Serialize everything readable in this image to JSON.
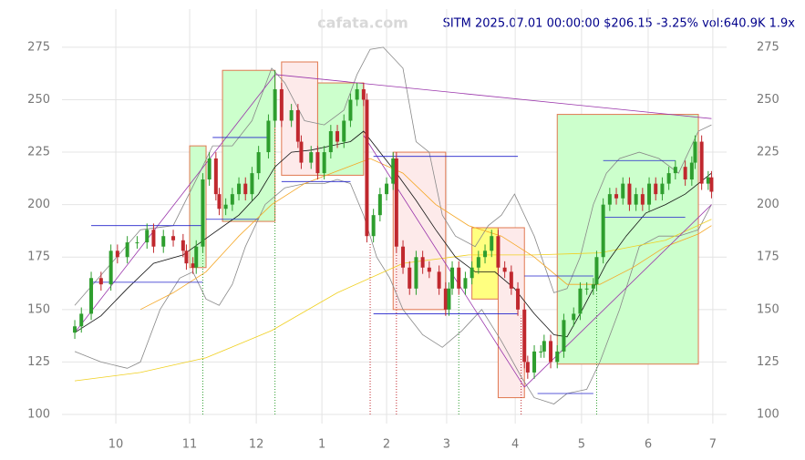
{
  "chart_data": {
    "type": "candlestick",
    "title": "SITM 2025.07.01 00:00:00 $206.15 -3.25% vol:640.9K 1.9x",
    "watermark": "cafata.com",
    "up_color": "#2e9e2e",
    "down_color": "#c0282e",
    "grid": true,
    "xlim": [
      -3.9,
      198.6
    ],
    "ylim": [
      100,
      284.5
    ],
    "yticks": [
      100,
      125,
      150,
      175,
      200,
      225,
      250,
      275
    ],
    "xticks": [
      {
        "value": 12.5,
        "label": "10"
      },
      {
        "value": 35,
        "label": "11"
      },
      {
        "value": 55.3,
        "label": "12"
      },
      {
        "value": 75.3,
        "label": "1"
      },
      {
        "value": 95,
        "label": "2"
      },
      {
        "value": 113.3,
        "label": "3"
      },
      {
        "value": 134.2,
        "label": "4"
      },
      {
        "value": 154.4,
        "label": "5"
      },
      {
        "value": 174.7,
        "label": "6"
      },
      {
        "value": 194.4,
        "label": "7"
      }
    ],
    "x": [
      0,
      2,
      5,
      8,
      11,
      13,
      16,
      19,
      22,
      24,
      27,
      30,
      33,
      34,
      36,
      37,
      39,
      41,
      43,
      44,
      46,
      48,
      50,
      52,
      54,
      56,
      59,
      61,
      63,
      66,
      68,
      69,
      72,
      74,
      76,
      78,
      80,
      82,
      84,
      86,
      88,
      89,
      91,
      93,
      95,
      97,
      98,
      100,
      102,
      104,
      106,
      108,
      111,
      113,
      114,
      115,
      117,
      119,
      121,
      123,
      125,
      127,
      129,
      131,
      133,
      135,
      137,
      138,
      140,
      142,
      143,
      145,
      147,
      149,
      152,
      154,
      156,
      158,
      159,
      161,
      163,
      165,
      167,
      169,
      171,
      173,
      175,
      177,
      179,
      181,
      183,
      186,
      188,
      189,
      191,
      193,
      194
    ],
    "open": [
      139,
      142,
      148,
      165,
      162,
      178,
      175,
      182,
      182,
      188,
      180,
      185,
      183,
      178,
      172,
      170,
      180,
      212,
      222,
      205,
      198,
      200,
      205,
      210,
      205,
      215,
      225,
      240,
      255,
      240,
      245,
      230,
      220,
      225,
      215,
      225,
      235,
      230,
      240,
      250,
      255,
      250,
      185,
      195,
      205,
      210,
      222,
      180,
      170,
      160,
      175,
      170,
      168,
      160,
      150,
      160,
      170,
      160,
      165,
      170,
      175,
      178,
      185,
      170,
      168,
      160,
      150,
      125,
      120,
      130,
      130,
      135,
      125,
      130,
      145,
      148,
      160,
      160,
      162,
      175,
      200,
      205,
      203,
      210,
      200,
      205,
      200,
      210,
      205,
      210,
      215,
      218,
      212,
      220,
      230,
      210,
      213
    ],
    "high": [
      145,
      151,
      168,
      168,
      181,
      181,
      185,
      185,
      191,
      191,
      188,
      188,
      186,
      181,
      175,
      183,
      215,
      225,
      225,
      208,
      203,
      208,
      213,
      213,
      218,
      228,
      243,
      264,
      258,
      248,
      248,
      233,
      228,
      228,
      228,
      238,
      238,
      243,
      253,
      258,
      258,
      253,
      198,
      208,
      213,
      225,
      225,
      183,
      173,
      178,
      178,
      173,
      171,
      163,
      163,
      173,
      173,
      168,
      173,
      178,
      181,
      188,
      188,
      173,
      171,
      163,
      153,
      128,
      133,
      133,
      138,
      138,
      133,
      148,
      151,
      163,
      163,
      165,
      178,
      203,
      208,
      208,
      213,
      213,
      208,
      208,
      213,
      213,
      213,
      218,
      221,
      221,
      223,
      233,
      233,
      216,
      216
    ],
    "low": [
      136,
      139,
      145,
      159,
      159,
      172,
      172,
      179,
      179,
      177,
      177,
      180,
      175,
      169,
      167,
      167,
      177,
      209,
      202,
      195,
      195,
      197,
      202,
      202,
      202,
      212,
      222,
      237,
      237,
      237,
      227,
      217,
      217,
      212,
      212,
      222,
      227,
      227,
      237,
      247,
      247,
      182,
      182,
      192,
      202,
      207,
      177,
      167,
      157,
      157,
      167,
      165,
      157,
      147,
      147,
      157,
      157,
      157,
      162,
      167,
      172,
      175,
      167,
      165,
      157,
      147,
      122,
      117,
      117,
      127,
      127,
      122,
      122,
      127,
      142,
      145,
      157,
      157,
      159,
      172,
      197,
      200,
      200,
      197,
      197,
      197,
      197,
      202,
      202,
      207,
      212,
      209,
      209,
      217,
      207,
      207,
      203
    ],
    "close": [
      142,
      148,
      165,
      162,
      178,
      175,
      182,
      182,
      188,
      180,
      185,
      183,
      178,
      172,
      170,
      180,
      212,
      222,
      205,
      198,
      200,
      205,
      210,
      205,
      215,
      225,
      240,
      255,
      240,
      245,
      230,
      220,
      225,
      215,
      225,
      235,
      230,
      240,
      250,
      255,
      250,
      185,
      195,
      205,
      210,
      222,
      180,
      170,
      160,
      175,
      170,
      168,
      160,
      150,
      160,
      170,
      160,
      165,
      170,
      175,
      178,
      185,
      170,
      168,
      160,
      150,
      125,
      120,
      130,
      130,
      135,
      125,
      130,
      145,
      148,
      160,
      160,
      162,
      175,
      200,
      205,
      203,
      210,
      200,
      205,
      200,
      210,
      205,
      210,
      215,
      218,
      212,
      220,
      230,
      210,
      213,
      206.15
    ],
    "zones": [
      {
        "color": "#ccffcc",
        "x": [
          35,
          40
        ],
        "y": [
          170,
          228
        ]
      },
      {
        "color": "#ccffcc",
        "x": [
          45,
          61
        ],
        "y": [
          192,
          264
        ]
      },
      {
        "color": "#fdeaea",
        "x": [
          63,
          74
        ],
        "y": [
          214,
          268
        ]
      },
      {
        "color": "#ccffcc",
        "x": [
          74,
          88
        ],
        "y": [
          214,
          258
        ]
      },
      {
        "color": "#fdeaea",
        "x": [
          97,
          113
        ],
        "y": [
          150,
          225
        ]
      },
      {
        "color": "#ffff80",
        "x": [
          121,
          129
        ],
        "y": [
          155,
          189
        ]
      },
      {
        "color": "#fdeaea",
        "x": [
          129,
          137
        ],
        "y": [
          108,
          189
        ]
      },
      {
        "color": "#ccffcc",
        "x": [
          147,
          190
        ],
        "y": [
          124,
          243
        ]
      }
    ],
    "lines": [
      {
        "color": "#888888",
        "x": [
          0,
          10,
          20,
          30,
          38,
          42,
          48,
          54,
          60,
          64,
          70,
          76,
          82,
          86,
          90,
          94,
          100,
          104,
          108,
          112,
          116,
          122,
          126,
          130,
          134,
          140,
          146,
          150,
          154,
          158,
          162,
          166,
          172,
          178,
          184,
          190,
          194
        ],
        "y": [
          152,
          170,
          188,
          190,
          215,
          228,
          228,
          240,
          265,
          258,
          240,
          238,
          245,
          262,
          274,
          275,
          265,
          230,
          225,
          195,
          185,
          180,
          190,
          195,
          205,
          185,
          158,
          160,
          175,
          200,
          215,
          222,
          225,
          222,
          215,
          235,
          238
        ]
      },
      {
        "color": "#888888",
        "x": [
          0,
          8,
          16,
          20,
          26,
          32,
          36,
          40,
          44,
          48,
          52,
          58,
          64,
          70,
          76,
          80,
          84,
          88,
          92,
          96,
          100,
          106,
          112,
          118,
          124,
          130,
          136,
          140,
          146,
          150,
          156,
          160,
          166,
          172,
          178,
          184,
          190,
          194
        ],
        "y": [
          130,
          125,
          122,
          125,
          150,
          165,
          168,
          155,
          152,
          162,
          180,
          200,
          208,
          210,
          210,
          212,
          210,
          195,
          175,
          165,
          150,
          138,
          132,
          140,
          150,
          135,
          118,
          108,
          105,
          110,
          112,
          125,
          150,
          180,
          185,
          185,
          188,
          200
        ]
      },
      {
        "color": "#f0d020",
        "x": [
          0,
          20,
          40,
          60,
          80,
          100,
          120,
          140,
          160,
          180,
          194
        ],
        "y": [
          116,
          120,
          127,
          140,
          158,
          172,
          176,
          176,
          177,
          183,
          193
        ]
      },
      {
        "color": "#f5a623",
        "x": [
          20,
          30,
          40,
          50,
          60,
          70,
          80,
          90,
          100,
          110,
          120,
          130,
          140,
          150,
          160,
          170,
          180,
          190,
          194
        ],
        "y": [
          150,
          158,
          168,
          185,
          200,
          210,
          216,
          222,
          215,
          200,
          190,
          185,
          175,
          162,
          162,
          170,
          180,
          186,
          190
        ]
      },
      {
        "color": "#111111",
        "x": [
          0,
          8,
          16,
          24,
          33,
          41,
          50,
          56,
          61,
          66,
          72,
          78,
          84,
          88,
          93,
          98,
          104,
          110,
          116,
          122,
          128,
          134,
          140,
          146,
          150,
          154,
          158,
          162,
          168,
          174,
          180,
          186,
          190,
          194
        ],
        "y": [
          139,
          147,
          160,
          172,
          176,
          185,
          195,
          205,
          218,
          225,
          226,
          228,
          230,
          235,
          225,
          215,
          202,
          188,
          175,
          168,
          168,
          160,
          148,
          138,
          137,
          148,
          160,
          172,
          185,
          196,
          200,
          205,
          210,
          215
        ]
      }
    ],
    "segments": [
      {
        "color": "#9933aa",
        "x": [
          0,
          61
        ],
        "y": [
          139,
          262
        ]
      },
      {
        "color": "#9933aa",
        "x": [
          61,
          194
        ],
        "y": [
          262,
          241
        ]
      },
      {
        "color": "#9933aa",
        "x": [
          88,
          137
        ],
        "y": [
          233,
          113
        ]
      },
      {
        "color": "#9933aa",
        "x": [
          137,
          194
        ],
        "y": [
          113,
          200
        ]
      },
      {
        "color": "#2222cc",
        "x": [
          5,
          39
        ],
        "y": [
          190,
          190
        ]
      },
      {
        "color": "#2222cc",
        "x": [
          5,
          39
        ],
        "y": [
          163,
          163
        ]
      },
      {
        "color": "#2222cc",
        "x": [
          42,
          59
        ],
        "y": [
          232,
          232
        ]
      },
      {
        "color": "#2222cc",
        "x": [
          40,
          56
        ],
        "y": [
          193,
          193
        ]
      },
      {
        "color": "#2222cc",
        "x": [
          63,
          84
        ],
        "y": [
          211,
          211
        ]
      },
      {
        "color": "#2222cc",
        "x": [
          91,
          135
        ],
        "y": [
          148,
          148
        ]
      },
      {
        "color": "#2222cc",
        "x": [
          91,
          135
        ],
        "y": [
          223,
          223
        ]
      },
      {
        "color": "#2222cc",
        "x": [
          137,
          158
        ],
        "y": [
          166,
          166
        ]
      },
      {
        "color": "#2222cc",
        "x": [
          141,
          158
        ],
        "y": [
          110,
          110
        ]
      },
      {
        "color": "#2222cc",
        "x": [
          161,
          183
        ],
        "y": [
          221,
          221
        ]
      },
      {
        "color": "#2222cc",
        "x": [
          161,
          186
        ],
        "y": [
          194,
          194
        ]
      }
    ],
    "markers": [
      {
        "x": 39,
        "color": "#2e9e2e"
      },
      {
        "x": 61,
        "color": "#2e9e2e"
      },
      {
        "x": 90,
        "color": "#c0282e"
      },
      {
        "x": 98,
        "color": "#c0282e"
      },
      {
        "x": 117,
        "color": "#2e9e2e"
      },
      {
        "x": 136,
        "color": "#c0282e"
      },
      {
        "x": 159,
        "color": "#2e9e2e"
      }
    ]
  }
}
